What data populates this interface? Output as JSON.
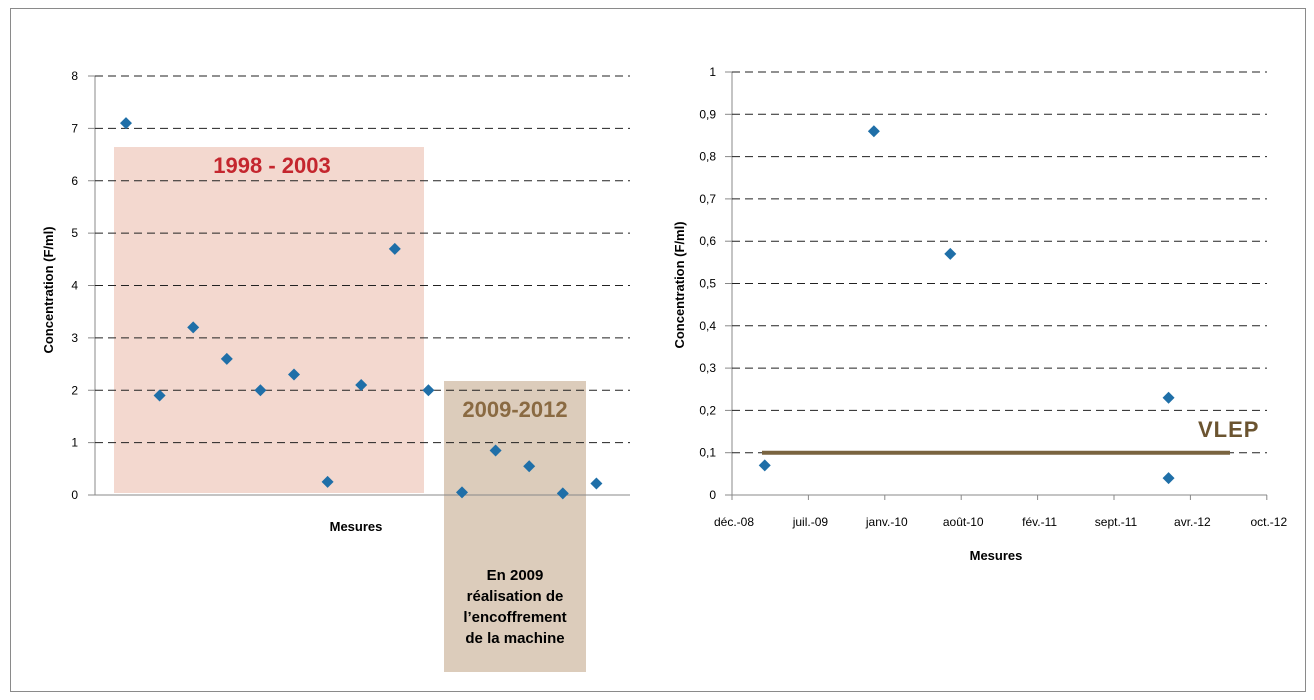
{
  "chart_data": [
    {
      "type": "scatter",
      "title": "",
      "xlabel": "Mesures",
      "ylabel": "Concentration (F/ml)",
      "ylim": [
        0,
        8
      ],
      "yticks": [
        "0",
        "1",
        "2",
        "3",
        "4",
        "5",
        "6",
        "7",
        "8"
      ],
      "grid": true,
      "series": [
        {
          "values": [
            7.1,
            1.9,
            3.2,
            2.6,
            2.0,
            2.3,
            0.25,
            2.1,
            4.7,
            2.0,
            0.05,
            0.85,
            0.55,
            0.03,
            0.22
          ]
        }
      ],
      "annotations": {
        "period1_label": "1998 - 2003",
        "period2_label": "2009-2012",
        "note_lines": [
          "En 2009",
          "réalisation de",
          "l’encoffrement",
          "de la machine"
        ]
      },
      "colors": {
        "points": "#1f6fa8",
        "period1_box": "#f3d8cf",
        "period2_box": "#dcccbb",
        "period1_text": "#c4262e",
        "period2_text": "#8a6a42"
      }
    },
    {
      "type": "scatter",
      "title": "",
      "xlabel": "Mesures",
      "ylabel": "Concentration (F/ml)",
      "ylim": [
        0,
        1
      ],
      "yticks": [
        "0",
        "0,1",
        "0,2",
        "0,3",
        "0,4",
        "0,5",
        "0,6",
        "0,7",
        "0,8",
        "0,9",
        "1"
      ],
      "xticks": [
        "déc.-08",
        "juil.-09",
        "janv.-10",
        "août-10",
        "fév.-11",
        "sept.-11",
        "avr.-12",
        "oct.-12"
      ],
      "grid": true,
      "series": [
        {
          "x": [
            "2009-03",
            "2010-01",
            "2010-08",
            "2012-04",
            "2012-04"
          ],
          "values": [
            0.07,
            0.86,
            0.57,
            0.23,
            0.04
          ]
        }
      ],
      "reference_line": {
        "label": "VLEP",
        "value": 0.1
      },
      "colors": {
        "points": "#1f6fa8",
        "reference_line": "#7a6440",
        "reference_text": "#6b5430"
      }
    }
  ]
}
